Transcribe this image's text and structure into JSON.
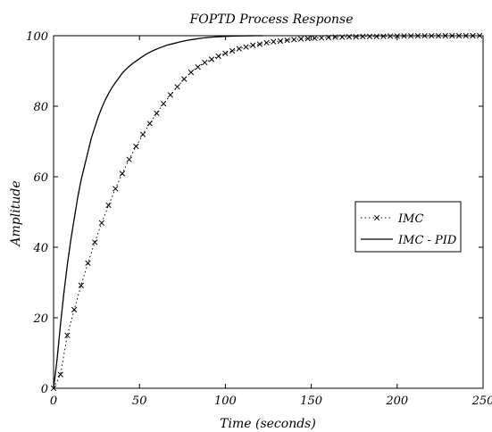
{
  "chart_data": {
    "type": "line",
    "title": "FOPTD Process Response",
    "xlabel": "Time (seconds)",
    "ylabel": "Amplitude",
    "xlim": [
      0,
      250
    ],
    "ylim": [
      0,
      100
    ],
    "xticks": [
      0,
      50,
      100,
      150,
      200,
      250
    ],
    "yticks": [
      0,
      20,
      40,
      60,
      80,
      100
    ],
    "grid": false,
    "legend_position": "right",
    "series": [
      {
        "name": "IMC",
        "style": "dotted with x markers",
        "color": "#000000",
        "x": [
          0,
          4,
          8,
          12,
          16,
          20,
          24,
          28,
          32,
          36,
          40,
          44,
          48,
          52,
          56,
          60,
          64,
          68,
          72,
          76,
          80,
          84,
          88,
          92,
          96,
          100,
          104,
          108,
          112,
          116,
          120,
          124,
          128,
          132,
          136,
          140,
          144,
          148,
          152,
          156,
          160,
          164,
          168,
          172,
          176,
          180,
          184,
          188,
          192,
          196,
          200,
          204,
          208,
          212,
          216,
          220,
          224,
          228,
          232,
          236,
          240,
          244,
          248
        ],
        "y": [
          0.0,
          3.9,
          15.0,
          22.3,
          29.2,
          35.5,
          41.4,
          46.9,
          51.9,
          56.6,
          60.9,
          64.9,
          68.6,
          72.0,
          75.1,
          78.0,
          80.7,
          83.2,
          85.5,
          87.7,
          89.6,
          91.1,
          92.4,
          93.3,
          94.2,
          95.0,
          95.7,
          96.3,
          96.8,
          97.3,
          97.6,
          98.0,
          98.3,
          98.5,
          98.7,
          98.9,
          99.1,
          99.2,
          99.3,
          99.4,
          99.5,
          99.6,
          99.6,
          99.7,
          99.7,
          99.8,
          99.8,
          99.8,
          99.85,
          99.88,
          99.9,
          99.92,
          99.93,
          99.95,
          99.96,
          99.97,
          99.97,
          99.98,
          99.98,
          99.99,
          99.99,
          99.99,
          100.0
        ]
      },
      {
        "name": "IMC - PID",
        "style": "solid",
        "color": "#000000",
        "x": [
          0,
          2,
          4,
          6,
          8,
          10,
          12,
          14,
          16,
          18,
          20,
          22,
          24,
          26,
          28,
          30,
          32,
          34,
          36,
          38,
          40,
          42,
          44,
          46,
          48,
          50,
          54,
          58,
          62,
          66,
          70,
          74,
          78,
          82,
          86,
          90,
          94,
          98,
          102,
          106,
          110,
          114,
          118,
          122
        ],
        "y": [
          0,
          8,
          18,
          27,
          35,
          42,
          48,
          54,
          59,
          63,
          67,
          71,
          74,
          77,
          79.5,
          81.7,
          83.6,
          85.3,
          86.7,
          88,
          89.4,
          90.4,
          91.3,
          92.1,
          92.8,
          93.5,
          94.8,
          95.8,
          96.6,
          97.3,
          97.8,
          98.3,
          98.7,
          99.0,
          99.3,
          99.5,
          99.65,
          99.75,
          99.85,
          99.9,
          99.95,
          99.98,
          100,
          100
        ]
      }
    ]
  }
}
